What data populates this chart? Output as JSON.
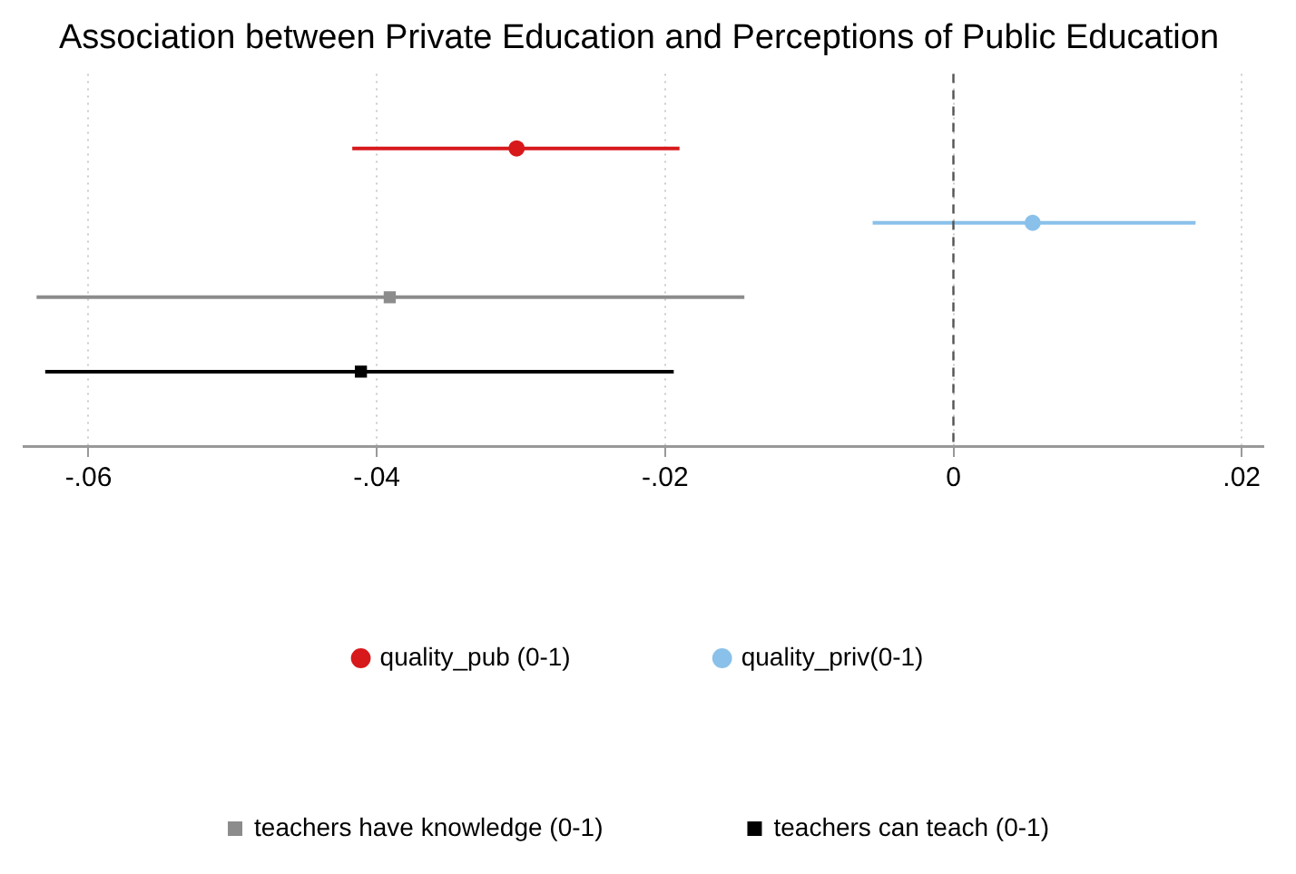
{
  "chart_data": {
    "type": "scatter",
    "orientation": "horizontal",
    "title": "Association between Private Education and Perceptions of Public Education",
    "categories": [
      null,
      null,
      null,
      null
    ],
    "series": [
      {
        "name": "quality_pub (0-1)",
        "color": "#d7191c",
        "marker": "circle",
        "values": [
          -0.0303,
          null,
          null,
          null
        ],
        "errors": [
          [
            -0.0417,
            -0.019
          ],
          null,
          null,
          null
        ]
      },
      {
        "name": "quality_priv(0-1)",
        "color": "#8ac1ea",
        "marker": "circle",
        "values": [
          null,
          0.0055,
          null,
          null
        ],
        "errors": [
          null,
          [
            -0.0056,
            0.0168
          ],
          null,
          null
        ]
      },
      {
        "name": "teachers have knowledge (0-1)",
        "color": "#8c8c8c",
        "marker": "square",
        "values": [
          null,
          null,
          -0.0391,
          null
        ],
        "errors": [
          null,
          null,
          [
            -0.0636,
            -0.0145
          ],
          null
        ]
      },
      {
        "name": "teachers can teach (0-1)",
        "color": "#000000",
        "marker": "square",
        "values": [
          null,
          null,
          null,
          -0.0411
        ],
        "errors": [
          null,
          null,
          null,
          [
            -0.063,
            -0.0194
          ]
        ]
      }
    ],
    "xlim": [
      -0.0645,
      0.0215
    ],
    "xticks": [
      {
        "value": -0.06,
        "label": "-.06"
      },
      {
        "value": -0.04,
        "label": "-.04"
      },
      {
        "value": -0.02,
        "label": "-.02"
      },
      0,
      {
        "value": 0.02,
        "label": ".02"
      }
    ],
    "ref_lines": [
      {
        "axis": "x",
        "value": 0,
        "color": "#555555",
        "line_style": "dashed"
      }
    ],
    "grid": "x",
    "legend": "bottom"
  }
}
